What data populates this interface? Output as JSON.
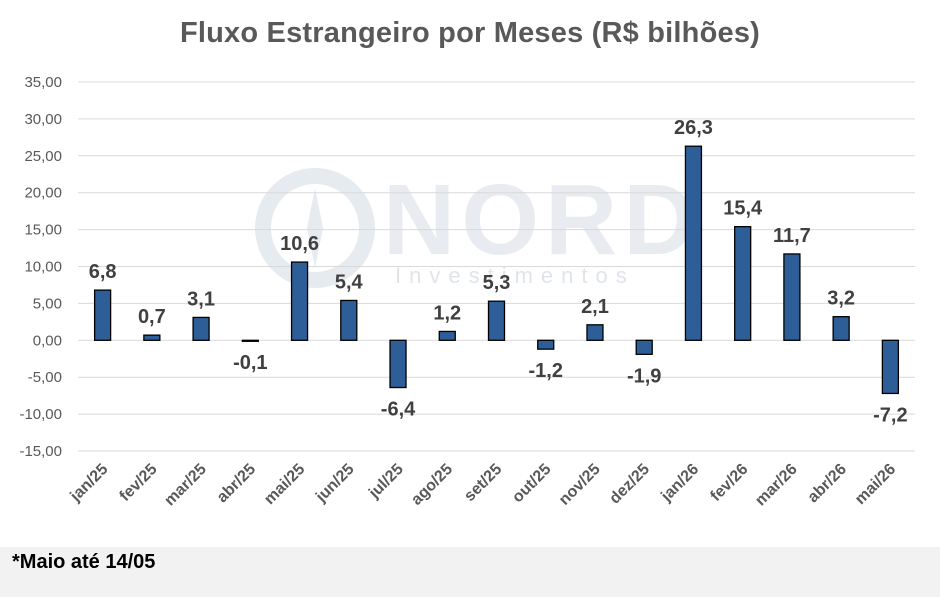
{
  "footnote": "*Maio até 14/05",
  "watermark": {
    "word": "NORD",
    "sub": "Investimentos"
  },
  "colors": {
    "bar": "#2E5E98",
    "grid": "#D9D9D9",
    "text": "#595959",
    "footnote_band": "#F2F2F2"
  },
  "chart_data": {
    "type": "bar",
    "title": "Fluxo Estrangeiro por Meses (R$ bilhões)",
    "xlabel": "",
    "ylabel": "",
    "ylim": [
      -15,
      35
    ],
    "yticks": [
      35,
      30,
      25,
      20,
      15,
      10,
      5,
      0,
      -5,
      -10,
      -15
    ],
    "ytick_labels": [
      "35,00",
      "30,00",
      "25,00",
      "20,00",
      "15,00",
      "10,00",
      "5,00",
      "0,00",
      "-5,00",
      "-10,00",
      "-15,00"
    ],
    "categories": [
      "jan/25",
      "fev/25",
      "mar/25",
      "abr/25",
      "mai/25",
      "jun/25",
      "jul/25",
      "ago/25",
      "set/25",
      "out/25",
      "nov/25",
      "dez/25",
      "jan/26",
      "fev/26",
      "mar/26",
      "abr/26",
      "mai/26"
    ],
    "values": [
      6.8,
      0.7,
      3.1,
      -0.1,
      10.6,
      5.4,
      -6.4,
      1.2,
      5.3,
      -1.2,
      2.1,
      -1.9,
      26.3,
      15.4,
      11.7,
      3.2,
      -7.2
    ],
    "data_labels": [
      "6,8",
      "0,7",
      "3,1",
      "-0,1",
      "10,6",
      "5,4",
      "-6,4",
      "1,2",
      "5,3",
      "-1,2",
      "2,1",
      "-1,9",
      "26,3",
      "15,4",
      "11,7",
      "3,2",
      "-7,2"
    ],
    "grid": true,
    "legend": "none"
  }
}
